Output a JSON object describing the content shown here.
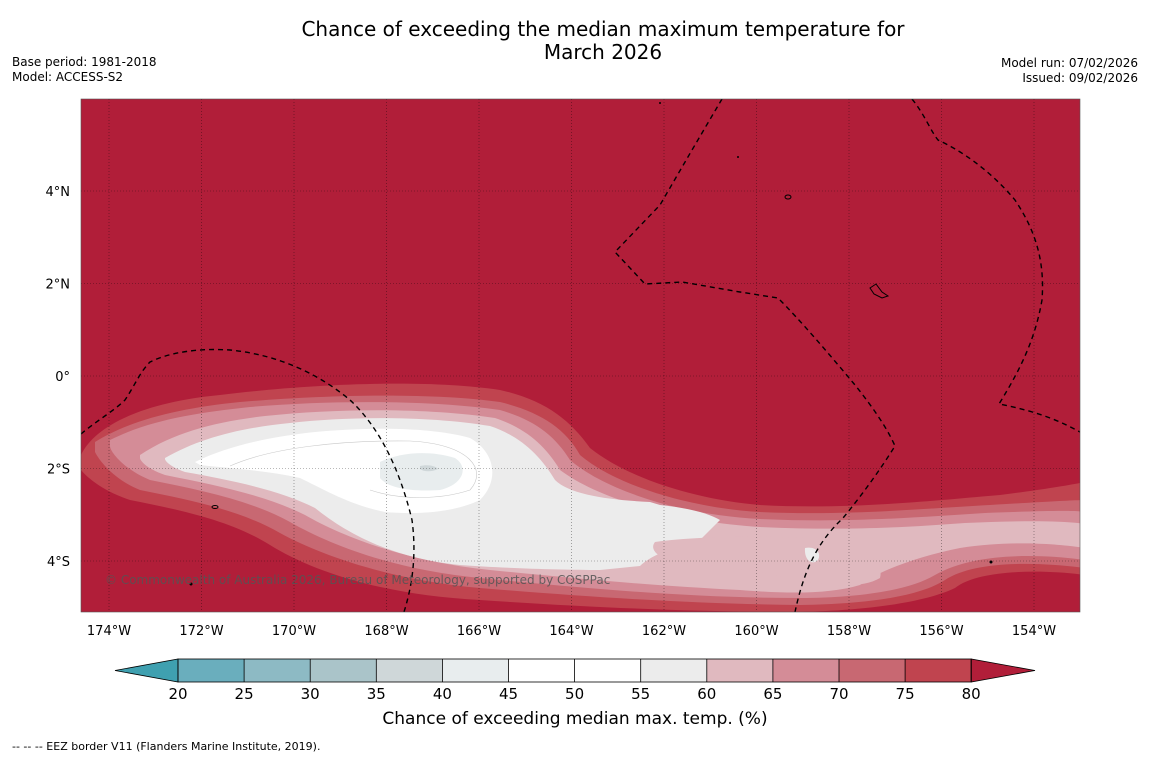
{
  "title": {
    "line1": "Chance of exceeding the median maximum temperature for",
    "line2": "March 2026"
  },
  "meta": {
    "base_period": "Base period: 1981-2018",
    "model": "Model: ACCESS-S2",
    "model_run": "Model run: 07/02/2026",
    "issued": "Issued: 09/02/2026"
  },
  "map": {
    "lon_labels": [
      "174°W",
      "172°W",
      "170°W",
      "168°W",
      "166°W",
      "164°W",
      "162°W",
      "160°W",
      "158°W",
      "156°W",
      "154°W"
    ],
    "lat_labels": [
      "4°N",
      "2°N",
      "0°",
      "2°S",
      "4°S"
    ],
    "copyright": "© Commonwealth of Australia 2026, Bureau of Meteorology, supported by COSPPac",
    "background_color": "#b11e39"
  },
  "colorbar": {
    "ticks": [
      "20",
      "25",
      "30",
      "35",
      "40",
      "45",
      "50",
      "55",
      "60",
      "65",
      "70",
      "75",
      "80"
    ],
    "colors": [
      "#3fa0b0",
      "#6aaebd",
      "#8dbac4",
      "#aac4c9",
      "#cfd7d9",
      "#e8edee",
      "#ffffff",
      "#ffffff",
      "#ececec",
      "#e0b9bf",
      "#d48c97",
      "#c86872",
      "#c0444f",
      "#b11e39"
    ],
    "label": "Chance of exceeding median max. temp. (%)"
  },
  "footer": {
    "legend": "--  --  -- EEZ border V11 (Flanders Marine Institute, 2019)."
  }
}
